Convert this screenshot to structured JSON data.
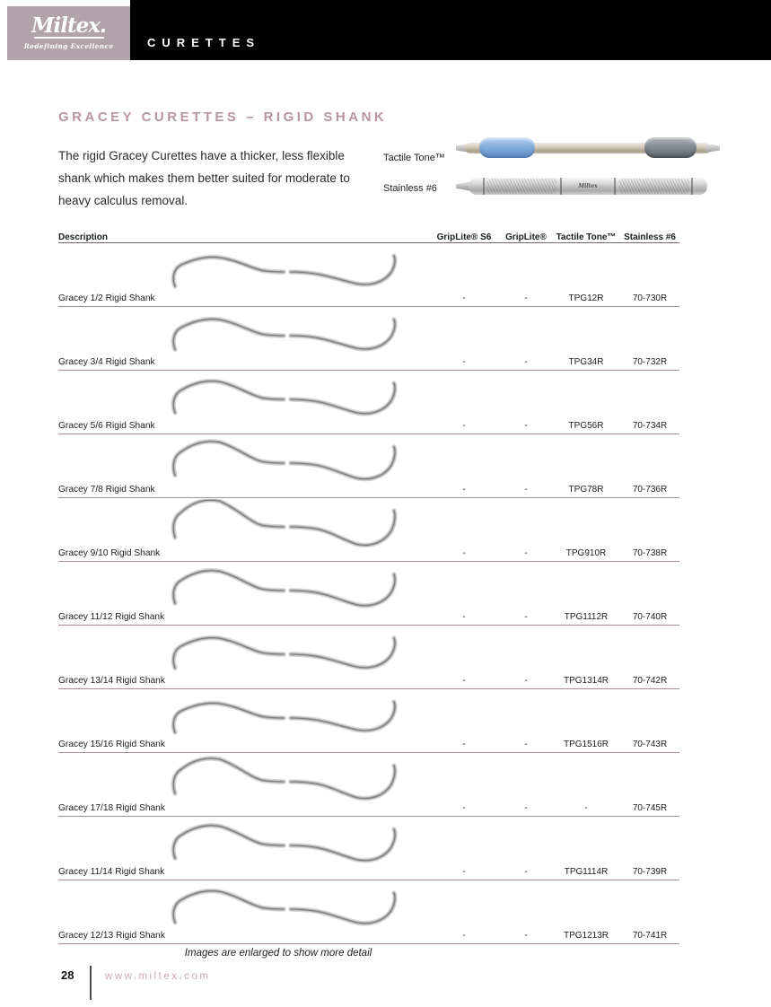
{
  "header": {
    "brand": "Miltex.",
    "brand_tagline": "Redefining Excellence",
    "section_title": "CURETTES"
  },
  "page": {
    "title": "GRACEY CURETTES – RIGID SHANK",
    "intro": "The rigid Gracey Curettes have a thicker, less flexible shank which makes them better suited for moderate to heavy calculus removal.",
    "handle_labels": {
      "tactile_tone": "Tactile Tone™",
      "stainless": "Stainless #6"
    }
  },
  "table": {
    "columns": [
      "Description",
      "GripLite® S6",
      "GripLite®",
      "Tactile Tone™",
      "Stainless #6"
    ],
    "rows": [
      {
        "description": "Gracey 1/2 Rigid Shank",
        "griplite_s6": "-",
        "griplite": "-",
        "tactile_tone": "TPG12R",
        "stainless": "70-730R"
      },
      {
        "description": "Gracey 3/4 Rigid Shank",
        "griplite_s6": "-",
        "griplite": "-",
        "tactile_tone": "TPG34R",
        "stainless": "70-732R"
      },
      {
        "description": "Gracey 5/6 Rigid Shank",
        "griplite_s6": "-",
        "griplite": "-",
        "tactile_tone": "TPG56R",
        "stainless": "70-734R"
      },
      {
        "description": "Gracey 7/8 Rigid Shank",
        "griplite_s6": "-",
        "griplite": "-",
        "tactile_tone": "TPG78R",
        "stainless": "70-736R"
      },
      {
        "description": "Gracey 9/10 Rigid Shank",
        "griplite_s6": "-",
        "griplite": "-",
        "tactile_tone": "TPG910R",
        "stainless": "70-738R"
      },
      {
        "description": "Gracey 11/12 Rigid Shank",
        "griplite_s6": "-",
        "griplite": "-",
        "tactile_tone": "TPG1112R",
        "stainless": "70-740R"
      },
      {
        "description": "Gracey 13/14 Rigid Shank",
        "griplite_s6": "-",
        "griplite": "-",
        "tactile_tone": "TPG1314R",
        "stainless": "70-742R"
      },
      {
        "description": "Gracey 15/16 Rigid Shank",
        "griplite_s6": "-",
        "griplite": "-",
        "tactile_tone": "TPG1516R",
        "stainless": "70-743R"
      },
      {
        "description": "Gracey 17/18 Rigid Shank",
        "griplite_s6": "-",
        "griplite": "-",
        "tactile_tone": "-",
        "stainless": "70-745R"
      },
      {
        "description": "Gracey 11/14 Rigid Shank",
        "griplite_s6": "-",
        "griplite": "-",
        "tactile_tone": "TPG1114R",
        "stainless": "70-739R"
      },
      {
        "description": "Gracey 12/13 Rigid Shank",
        "griplite_s6": "-",
        "griplite": "-",
        "tactile_tone": "TPG1213R",
        "stainless": "70-741R"
      }
    ]
  },
  "footer": {
    "note": "Images are enlarged to show more detail",
    "page_number": "28",
    "website": "www.miltex.com"
  },
  "colors": {
    "brand_box": "#b2a2a9",
    "title_text": "#b795a3",
    "header_bar": "#000000",
    "row_divider": "#a58b95",
    "website_text": "#c7a9b3"
  }
}
